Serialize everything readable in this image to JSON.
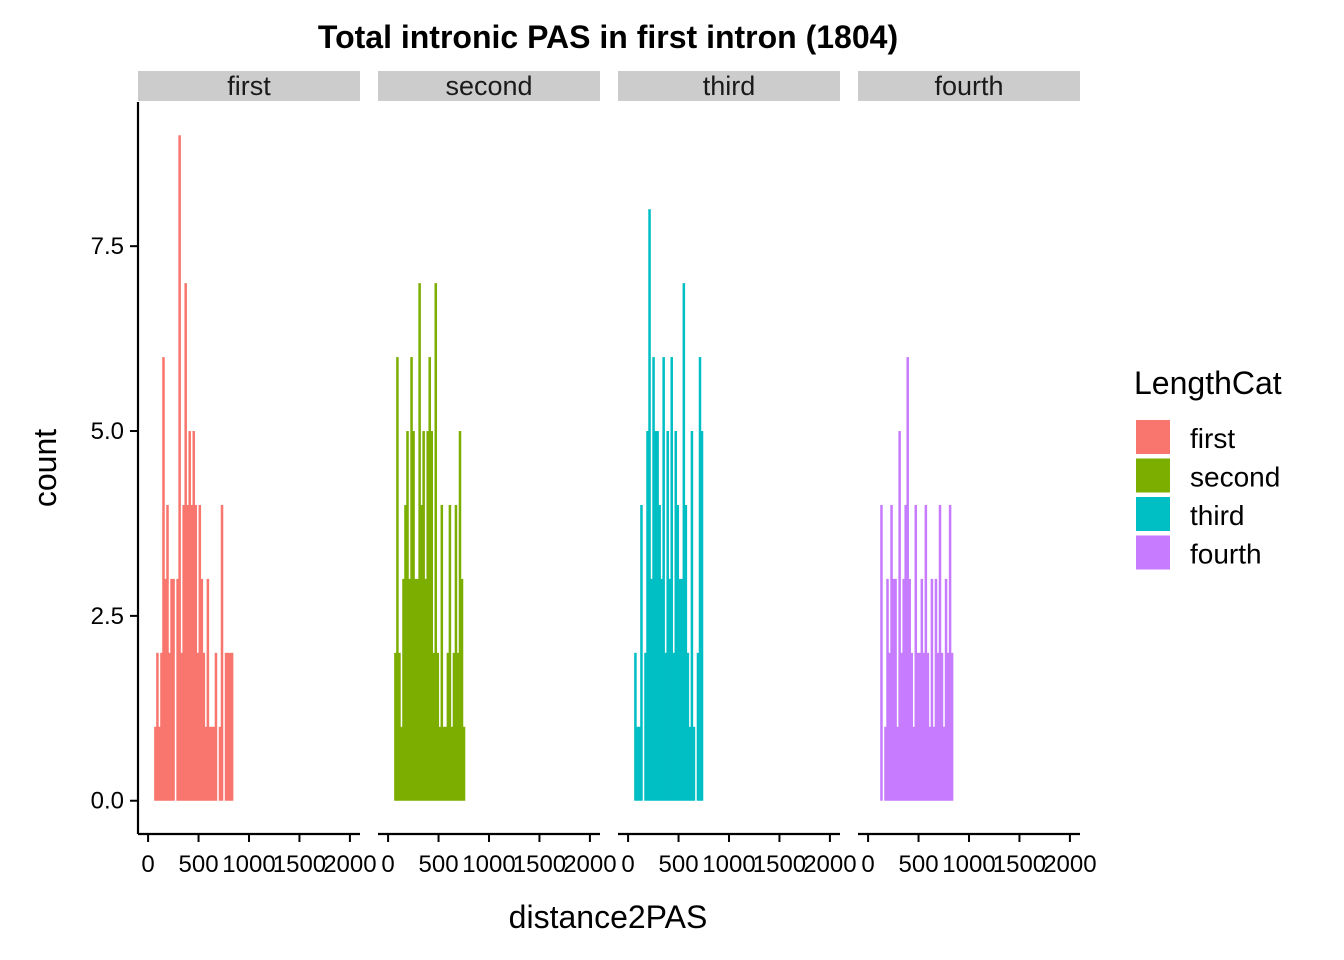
{
  "chart_data": {
    "type": "histogram",
    "title": "Total intronic PAS in first intron (1804)",
    "xlabel": "distance2PAS",
    "ylabel": "count",
    "xlim": [
      -100,
      2100
    ],
    "ylim": [
      -0.45,
      9.45
    ],
    "x_ticks": [
      0,
      500,
      1000,
      1500,
      2000
    ],
    "x_tick_labels": [
      "0",
      "500",
      "1000",
      "1500",
      "2000"
    ],
    "y_ticks": [
      0,
      2.5,
      5,
      7.5
    ],
    "y_tick_labels": [
      "0.0",
      "2.5",
      "5.0",
      "7.5"
    ],
    "bin_width": 20,
    "bin_start": 60,
    "facet_var": "LengthCat",
    "legend": {
      "title": "LengthCat",
      "position": "right",
      "entries": [
        {
          "label": "first",
          "color": "#F8766D"
        },
        {
          "label": "second",
          "color": "#7CAE00"
        },
        {
          "label": "third",
          "color": "#00BFC4"
        },
        {
          "label": "fourth",
          "color": "#C77CFF"
        }
      ]
    },
    "panels": [
      {
        "label": "first",
        "color": "#F8766D",
        "counts": [
          1,
          2,
          1,
          2,
          6,
          3,
          4,
          2,
          3,
          3,
          0,
          3,
          9,
          2,
          4,
          7,
          4,
          5,
          4,
          5,
          4,
          2,
          4,
          3,
          2,
          1,
          3,
          1,
          1,
          1,
          2,
          0,
          1,
          4,
          0,
          2,
          2,
          2,
          2
        ]
      },
      {
        "label": "second",
        "color": "#7CAE00",
        "counts": [
          2,
          6,
          2,
          1,
          3,
          4,
          5,
          3,
          6,
          5,
          3,
          3,
          7,
          4,
          5,
          3,
          5,
          6,
          5,
          2,
          7,
          2,
          1,
          4,
          1,
          1,
          2,
          4,
          1,
          2,
          4,
          2,
          5,
          3,
          1
        ]
      },
      {
        "label": "third",
        "color": "#00BFC4",
        "counts": [
          2,
          1,
          1,
          4,
          0,
          2,
          5,
          8,
          3,
          6,
          5,
          5,
          4,
          3,
          6,
          2,
          5,
          3,
          6,
          2,
          5,
          4,
          3,
          3,
          7,
          4,
          2,
          1,
          5,
          1,
          0,
          2,
          6,
          5
        ]
      },
      {
        "label": "fourth",
        "color": "#C77CFF",
        "counts": [
          0,
          0,
          0,
          4,
          0,
          1,
          3,
          2,
          4,
          3,
          3,
          1,
          5,
          2,
          3,
          4,
          6,
          3,
          2,
          1,
          4,
          2,
          2,
          3,
          2,
          4,
          2,
          1,
          3,
          1,
          3,
          2,
          4,
          2,
          1,
          3,
          2,
          4,
          2
        ]
      }
    ]
  }
}
